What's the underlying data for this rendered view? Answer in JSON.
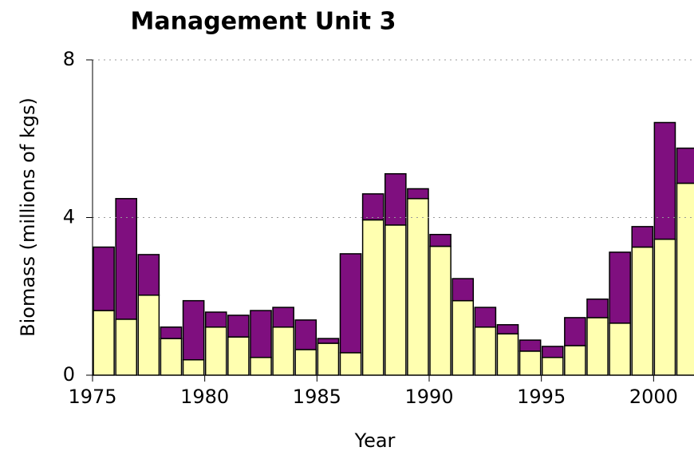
{
  "chart_data": {
    "type": "stacked_bar",
    "title": "Management Unit 3",
    "x_label": "Year",
    "y_label": "Biomass (millions of kgs)",
    "x": [
      1975,
      1976,
      1977,
      1978,
      1979,
      1980,
      1981,
      1982,
      1983,
      1984,
      1985,
      1986,
      1987,
      1988,
      1989,
      1990,
      1991,
      1992,
      1993,
      1994,
      1995,
      1996,
      1997,
      1998,
      1999,
      2000,
      2001
    ],
    "series": [
      {
        "color": "#ffffb0",
        "values": [
          1.64,
          1.42,
          2.03,
          0.93,
          0.39,
          1.22,
          0.97,
          0.45,
          1.22,
          0.65,
          0.81,
          0.57,
          3.94,
          3.81,
          4.48,
          3.27,
          1.89,
          1.22,
          1.05,
          0.61,
          0.45,
          0.75,
          1.46,
          1.32,
          3.25,
          3.45,
          4.87
        ]
      },
      {
        "color": "#7f0f7f",
        "values": [
          1.61,
          3.06,
          1.03,
          0.29,
          1.5,
          0.38,
          0.55,
          1.19,
          0.5,
          0.75,
          0.12,
          2.51,
          0.66,
          1.3,
          0.25,
          0.3,
          0.56,
          0.5,
          0.23,
          0.28,
          0.28,
          0.71,
          0.47,
          1.8,
          0.52,
          2.96,
          0.89
        ]
      }
    ],
    "xlim": [
      1975,
      2001.8
    ],
    "xticks": [
      1975,
      1980,
      1985,
      1990,
      1995,
      2000
    ],
    "ylim": [
      0,
      8
    ],
    "yticks": [
      0,
      4,
      8
    ],
    "grid": true
  }
}
